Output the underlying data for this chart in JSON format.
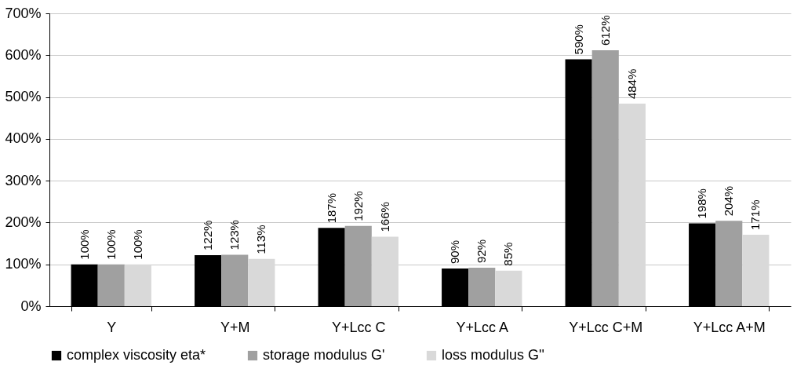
{
  "chart_data": {
    "type": "bar",
    "categories": [
      "Y",
      "Y+M",
      "Y+Lcc C",
      "Y+Lcc A",
      "Y+Lcc C+M",
      "Y+Lcc A+M"
    ],
    "series": [
      {
        "name": "complex viscosity eta*",
        "color": "#000000",
        "values": [
          100,
          122,
          187,
          90,
          590,
          198
        ],
        "value_labels": [
          "100%",
          "122%",
          "187%",
          "90%",
          "590%",
          "198%"
        ]
      },
      {
        "name": "storage modulus G'",
        "color": "#a0a0a0",
        "values": [
          100,
          123,
          192,
          92,
          612,
          204
        ],
        "value_labels": [
          "100%",
          "123%",
          "192%",
          "92%",
          "612%",
          "204%"
        ]
      },
      {
        "name": "loss modulus G''",
        "color": "#d9d9d9",
        "values": [
          100,
          113,
          166,
          85,
          484,
          171
        ],
        "value_labels": [
          "100%",
          "113%",
          "166%",
          "85%",
          "484%",
          "171%"
        ]
      }
    ],
    "ylim": [
      0,
      700
    ],
    "yticks": [
      {
        "value": 0,
        "label": "0%"
      },
      {
        "value": 100,
        "label": "100%"
      },
      {
        "value": 200,
        "label": "200%"
      },
      {
        "value": 300,
        "label": "300%"
      },
      {
        "value": 400,
        "label": "400%"
      },
      {
        "value": 500,
        "label": "500%"
      },
      {
        "value": 600,
        "label": "600%"
      },
      {
        "value": 700,
        "label": "700%"
      }
    ],
    "grid": "y",
    "legend": "bottom"
  }
}
